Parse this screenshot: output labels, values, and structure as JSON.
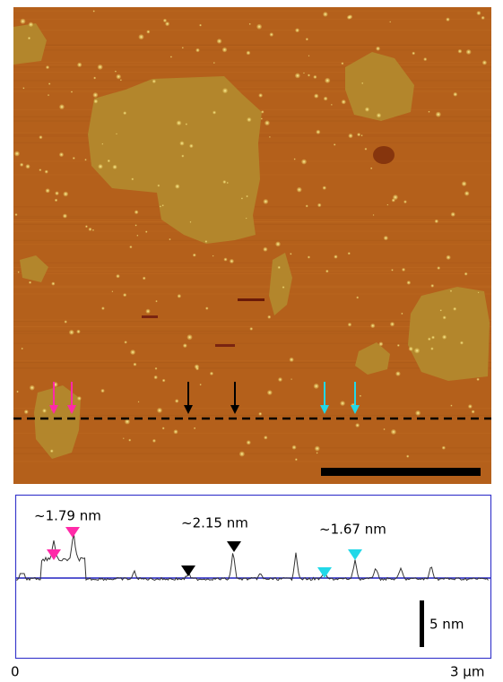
{
  "height_profile": {
    "step_labels": [
      "~1.79 nm",
      "~2.15 nm",
      "~1.67 nm"
    ],
    "scale_bar_label": "5 nm",
    "x_axis_labels": [
      "0",
      "3 μm"
    ]
  }
}
